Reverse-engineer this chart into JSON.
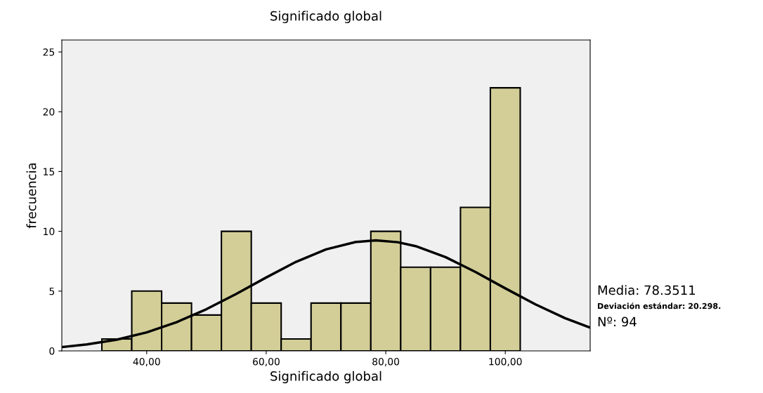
{
  "chart_data": {
    "type": "histogram",
    "title": "Significado global",
    "xlabel": "Significado global",
    "ylabel": "frecuencia",
    "series": [
      {
        "color": "#d3ce97",
        "bins": [
          32.5,
          37.5,
          42.5,
          47.5,
          52.5,
          57.5,
          62.5,
          67.5,
          72.5,
          77.5,
          82.5,
          87.5,
          92.5,
          97.5,
          102.5
        ],
        "values": [
          1,
          5,
          4,
          3,
          10,
          4,
          1,
          4,
          4,
          10,
          7,
          7,
          12,
          22
        ]
      },
      {
        "type": "line",
        "color": "#000000",
        "x": [
          26,
          30,
          35,
          40,
          45,
          50,
          55,
          60,
          65,
          70,
          75,
          78.35,
          82,
          85,
          90,
          95,
          100,
          105,
          110,
          114
        ],
        "values": [
          0.33,
          0.54,
          0.94,
          1.55,
          2.4,
          3.49,
          4.77,
          6.14,
          7.45,
          8.49,
          9.11,
          9.24,
          9.09,
          8.76,
          7.84,
          6.6,
          5.23,
          3.9,
          2.74,
          1.98
        ]
      }
    ],
    "xlim": [
      25.8,
      114.2
    ],
    "ylim": [
      0,
      26
    ],
    "xticks": [
      {
        "value": 40,
        "label": "40,00"
      },
      {
        "value": 60,
        "label": "60,00"
      },
      {
        "value": 80,
        "label": "80,00"
      },
      {
        "value": 100,
        "label": "100,00"
      }
    ],
    "yticks": [
      0,
      5,
      10,
      15,
      20,
      25
    ],
    "grid": false,
    "legend": false,
    "annotations": [
      "Media: 78.3511",
      "Deviación estándar: 20.298.",
      "Nº: 94"
    ]
  }
}
